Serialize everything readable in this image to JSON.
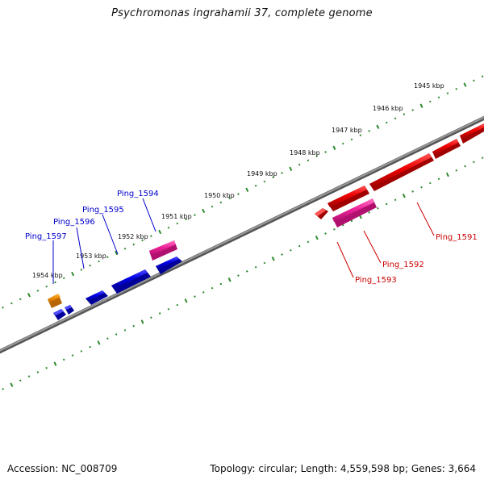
{
  "title": "Psychromonas ingrahamii 37, complete genome",
  "footer": {
    "accession": "Accession: NC_008709",
    "summary": "Topology: circular; Length: 4,559,598 bp; Genes: 3,664"
  },
  "map": {
    "backbone_color": "#7a7a7a",
    "tick_color": "#2e8b2e",
    "ruler_labels": [
      "1945 kbp",
      "1946 kbp",
      "1947 kbp",
      "1948 kbp",
      "1949 kbp",
      "1950 kbp",
      "1951 kbp",
      "1952 kbp",
      "1953 kbp",
      "1954 kbp"
    ],
    "strand_colors": {
      "forward_cds": "#0000ee",
      "reverse_cds": "#ee0000",
      "forward_rna": "#ee3399",
      "reverse_rna": "#ee3399",
      "other": "#f08c00"
    },
    "genes": [
      {
        "label": "Ping_1597",
        "strand": "forward",
        "kind": "other",
        "label_color": "#0000cc"
      },
      {
        "label": "Ping_1596",
        "strand": "forward",
        "kind": "cds",
        "label_color": "#0000cc"
      },
      {
        "label": "Ping_1595",
        "strand": "forward",
        "kind": "cds",
        "label_color": "#0000cc"
      },
      {
        "label": "Ping_1594",
        "strand": "forward",
        "kind": "rna",
        "label_color": "#0000cc"
      },
      {
        "label": "Ping_1593",
        "strand": "reverse",
        "kind": "cds",
        "label_color": "#cc0000"
      },
      {
        "label": "Ping_1592",
        "strand": "reverse",
        "kind": "rna",
        "label_color": "#cc0000"
      },
      {
        "label": "Ping_1591",
        "strand": "reverse",
        "kind": "cds",
        "label_color": "#cc0000"
      }
    ]
  }
}
